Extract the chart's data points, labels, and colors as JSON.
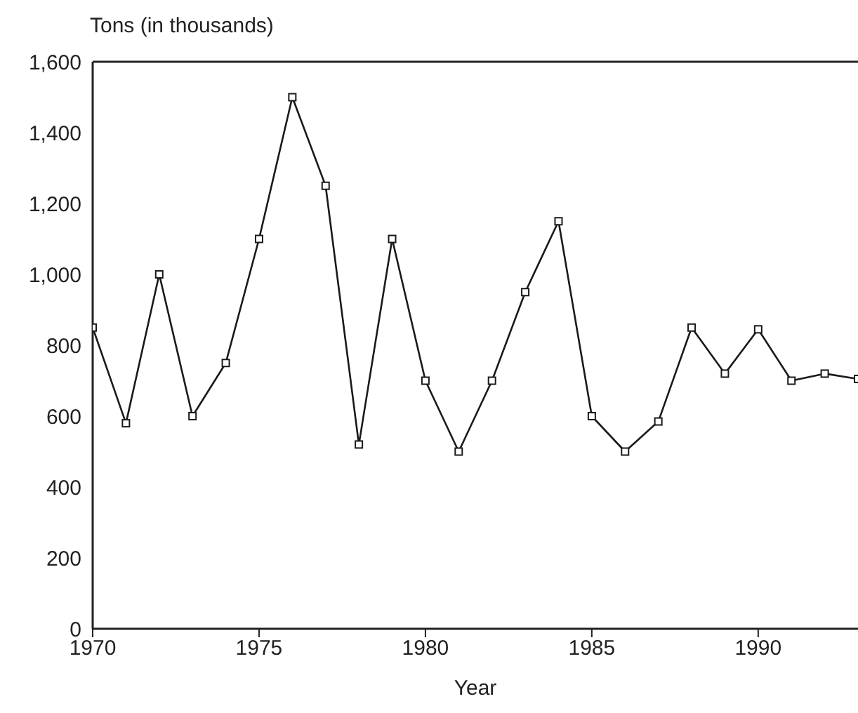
{
  "chart_data": {
    "type": "line",
    "xlabel": "Year",
    "ylabel": "Tons (in thousands)",
    "x": [
      1970,
      1971,
      1972,
      1973,
      1974,
      1975,
      1976,
      1977,
      1978,
      1979,
      1980,
      1981,
      1982,
      1983,
      1984,
      1985,
      1986,
      1987,
      1988,
      1989,
      1990,
      1991,
      1992,
      1993
    ],
    "series": [
      {
        "color": "#1a1a1a",
        "values": [
          850,
          580,
          1000,
          600,
          750,
          1100,
          1500,
          1250,
          520,
          1100,
          700,
          500,
          700,
          950,
          1150,
          600,
          500,
          585,
          850,
          720,
          845,
          700,
          720,
          705
        ]
      }
    ],
    "xlim": [
      1970,
      1993
    ],
    "xticks": [
      1970,
      1975,
      1980,
      1985,
      1990
    ],
    "ylim": [
      0,
      1600
    ],
    "yticks": [
      0,
      200,
      400,
      600,
      800,
      {
        "value": 1000,
        "label": "1,000"
      },
      {
        "value": 1200,
        "label": "1,200"
      },
      {
        "value": 1400,
        "label": "1,400"
      },
      {
        "value": 1600,
        "label": "1,600"
      }
    ],
    "grid": false,
    "legend": false,
    "marker": "square",
    "line_style": "solid"
  }
}
